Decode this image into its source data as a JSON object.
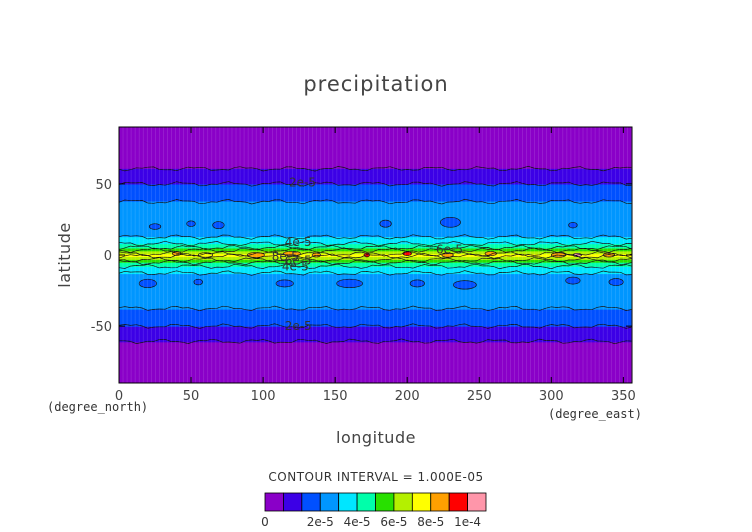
{
  "chart_data": {
    "type": "contour",
    "title": "precipitation",
    "xlabel": "longitude",
    "ylabel": "latitude",
    "x_unit": "(degree_east)",
    "y_unit": "(degree_north)",
    "xlim": [
      0,
      356
    ],
    "ylim": [
      -90,
      90
    ],
    "x_ticks": [
      0,
      50,
      100,
      150,
      200,
      250,
      300,
      350
    ],
    "y_ticks": [
      -50,
      0,
      50
    ],
    "contour_interval_text": "CONTOUR INTERVAL = 1.000E-05",
    "contour_levels": [
      0,
      1e-05,
      2e-05,
      3e-05,
      4e-05,
      5e-05,
      6e-05,
      7e-05,
      8e-05,
      9e-05,
      0.0001
    ],
    "colorbar": {
      "colors": [
        "#8a00c8",
        "#3c00e6",
        "#0050ff",
        "#0096ff",
        "#00e6ff",
        "#00ffaa",
        "#28e000",
        "#b4f000",
        "#ffff00",
        "#ffa000",
        "#ff0000",
        "#ff96aa"
      ],
      "tick_labels": [
        "0",
        "2e-5",
        "4e-5",
        "6e-5",
        "8e-5",
        "1e-4"
      ]
    },
    "contour_labels": [
      {
        "text": "2e-5",
        "lon": 118,
        "lat": 51
      },
      {
        "text": "4e-5",
        "lon": 115,
        "lat": 9
      },
      {
        "text": "6e-5",
        "lon": 220,
        "lat": 4
      },
      {
        "text": "8e-5",
        "lon": 106,
        "lat": -1
      },
      {
        "text": "6e-5",
        "lon": 115,
        "lat": -4
      },
      {
        "text": "4e-5",
        "lon": 113,
        "lat": -8
      },
      {
        "text": "2e-5",
        "lon": 115,
        "lat": -50
      }
    ],
    "zonal_profile": [
      {
        "lat": -90,
        "value": 3e-06
      },
      {
        "lat": -70,
        "value": 5e-06
      },
      {
        "lat": -62,
        "value": 9e-06
      },
      {
        "lat": -58,
        "value": 1.2e-05
      },
      {
        "lat": -54,
        "value": 1.6e-05
      },
      {
        "lat": -48,
        "value": 2.2e-05
      },
      {
        "lat": -42,
        "value": 2.7e-05
      },
      {
        "lat": -36,
        "value": 3.1e-05
      },
      {
        "lat": -30,
        "value": 3.5e-05
      },
      {
        "lat": -24,
        "value": 3.7e-05
      },
      {
        "lat": -18,
        "value": 3.6e-05
      },
      {
        "lat": -14,
        "value": 3.8e-05
      },
      {
        "lat": -10,
        "value": 4.4e-05
      },
      {
        "lat": -6,
        "value": 5.6e-05
      },
      {
        "lat": -3,
        "value": 7.2e-05
      },
      {
        "lat": 0,
        "value": 8.3e-05
      },
      {
        "lat": 3,
        "value": 7.2e-05
      },
      {
        "lat": 6,
        "value": 5.6e-05
      },
      {
        "lat": 10,
        "value": 4.4e-05
      },
      {
        "lat": 14,
        "value": 3.8e-05
      },
      {
        "lat": 18,
        "value": 3.6e-05
      },
      {
        "lat": 24,
        "value": 3.7e-05
      },
      {
        "lat": 30,
        "value": 3.5e-05
      },
      {
        "lat": 36,
        "value": 3.1e-05
      },
      {
        "lat": 42,
        "value": 2.7e-05
      },
      {
        "lat": 48,
        "value": 2.2e-05
      },
      {
        "lat": 54,
        "value": 1.6e-05
      },
      {
        "lat": 58,
        "value": 1.2e-05
      },
      {
        "lat": 62,
        "value": 9e-06
      },
      {
        "lat": 70,
        "value": 5e-06
      },
      {
        "lat": 90,
        "value": 3e-06
      }
    ]
  }
}
